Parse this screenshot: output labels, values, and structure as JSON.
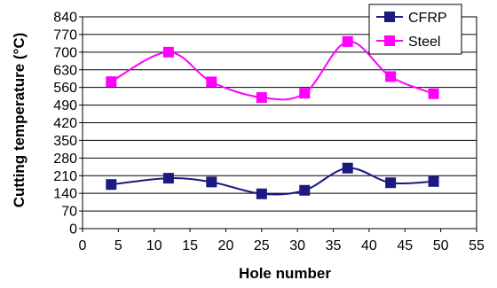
{
  "chart_data": {
    "type": "line",
    "xlabel": "Hole number",
    "ylabel": "Cutting temperature (°C)",
    "xlim": [
      0,
      55
    ],
    "ylim": [
      0,
      840
    ],
    "xticks": [
      0,
      5,
      10,
      15,
      20,
      25,
      30,
      35,
      40,
      45,
      50,
      55
    ],
    "yticks": [
      0,
      70,
      140,
      210,
      280,
      350,
      420,
      490,
      560,
      630,
      700,
      770,
      840
    ],
    "grid": "horizontal",
    "legend_position": "top-right",
    "x": [
      4,
      12,
      18,
      25,
      31,
      37,
      43,
      49
    ],
    "series": [
      {
        "name": "CFRP",
        "color": "#1a1a80",
        "marker": "square",
        "values": [
          175,
          200,
          185,
          138,
          152,
          240,
          182,
          187
        ]
      },
      {
        "name": "Steel",
        "color": "#ff00ff",
        "marker": "square",
        "values": [
          583,
          700,
          582,
          520,
          537,
          742,
          603,
          535
        ]
      }
    ]
  }
}
